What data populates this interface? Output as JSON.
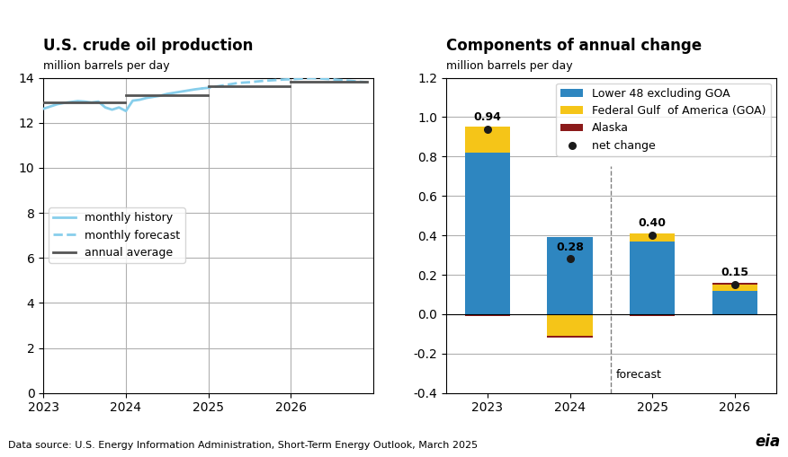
{
  "chart_data": [
    {
      "type": "line",
      "title": "U.S. crude oil production",
      "subtitle": "million barrels per day",
      "xlim": [
        2023.0,
        2027.0
      ],
      "xticks": [
        2023,
        2024,
        2025,
        2026
      ],
      "ylim": [
        0,
        14
      ],
      "yticks": [
        0,
        2,
        4,
        6,
        8,
        10,
        12,
        14
      ],
      "grid": true,
      "legend": "center left",
      "series": [
        {
          "name": "monthly history",
          "color": "#87CEEB",
          "line_style": "solid",
          "x": [
            2023.0,
            2023.083,
            2023.167,
            2023.25,
            2023.333,
            2023.417,
            2023.5,
            2023.583,
            2023.667,
            2023.75,
            2023.833,
            2023.917,
            2024.0,
            2024.083,
            2024.167,
            2024.25,
            2024.333,
            2024.417,
            2024.5,
            2024.583,
            2024.667,
            2024.75,
            2024.833,
            2024.917
          ],
          "values": [
            12.62,
            12.72,
            12.82,
            12.88,
            12.92,
            12.96,
            12.94,
            12.9,
            12.94,
            12.68,
            12.58,
            12.68,
            12.52,
            12.98,
            13.02,
            13.1,
            13.15,
            13.2,
            13.28,
            13.33,
            13.38,
            13.43,
            13.48,
            13.52
          ]
        },
        {
          "name": "monthly forecast",
          "color": "#87CEEB",
          "line_style": "dashed",
          "x": [
            2024.917,
            2025.0,
            2025.083,
            2025.167,
            2025.25,
            2025.333,
            2025.417,
            2025.5,
            2025.583,
            2025.667,
            2025.75,
            2025.833,
            2025.917,
            2026.0,
            2026.083,
            2026.167,
            2026.25,
            2026.333,
            2026.417,
            2026.5,
            2026.583,
            2026.667,
            2026.75,
            2026.833,
            2026.917
          ],
          "values": [
            13.52,
            13.55,
            13.6,
            13.65,
            13.7,
            13.75,
            13.78,
            13.8,
            13.83,
            13.86,
            13.88,
            13.9,
            13.92,
            13.93,
            13.95,
            13.97,
            13.98,
            13.97,
            13.95,
            13.93,
            13.9,
            13.88,
            13.85,
            13.82,
            13.8
          ]
        },
        {
          "name": "annual average",
          "color": "#555555",
          "line_style": "solid",
          "segments": [
            {
              "x": [
                2023.0,
                2023.99
              ],
              "values": [
                12.9,
                12.9
              ]
            },
            {
              "x": [
                2024.0,
                2024.99
              ],
              "values": [
                13.21,
                13.21
              ]
            },
            {
              "x": [
                2025.0,
                2025.99
              ],
              "values": [
                13.61,
                13.61
              ]
            },
            {
              "x": [
                2026.0,
                2026.92
              ],
              "values": [
                13.84,
                13.84
              ]
            }
          ]
        }
      ]
    },
    {
      "type": "bar",
      "title": "Components of annual change",
      "subtitle": "million barrels per day",
      "categories": [
        "2023",
        "2024",
        "2025",
        "2026"
      ],
      "stacked": true,
      "ylim": [
        -0.4,
        1.2
      ],
      "yticks": [
        -0.4,
        -0.2,
        0.0,
        0.2,
        0.4,
        0.6,
        0.8,
        1.0,
        1.2
      ],
      "grid": "y",
      "legend": "upper right",
      "annotations": [
        {
          "text": "forecast",
          "category": "2025"
        }
      ],
      "series": [
        {
          "name": "Lower 48 excluding GOA",
          "color": "#2e86c0",
          "values": [
            0.82,
            0.39,
            0.37,
            0.12
          ]
        },
        {
          "name": "Federal Gulf  of America (GOA)",
          "color": "#f5c518",
          "values": [
            0.13,
            -0.11,
            0.04,
            0.03
          ]
        },
        {
          "name": "Alaska",
          "color": "#8b1a1a",
          "values": [
            -0.01,
            -0.01,
            -0.01,
            0.01
          ]
        },
        {
          "name": "net change",
          "type": "scatter",
          "marker": "o",
          "color": "#1a1a1a",
          "values": [
            0.94,
            0.28,
            0.4,
            0.15
          ],
          "data_labels": true,
          "value_labels": [
            "0.94",
            "0.28",
            "0.40",
            "0.15"
          ]
        }
      ]
    }
  ],
  "footer": "Data source: U.S. Energy Information Administration, Short-Term Energy Outlook, March 2025",
  "credit": "eia"
}
